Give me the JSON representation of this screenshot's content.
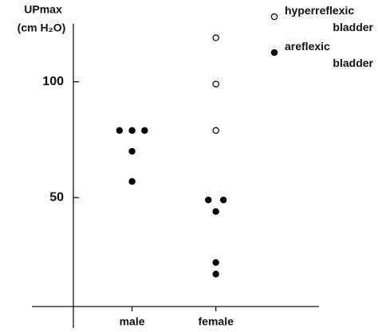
{
  "chart_data": {
    "type": "scatter",
    "y_label": "UPmax",
    "y_unit": "(cm H₂O)",
    "xlim": [
      0.3,
      3.23
    ],
    "xticks": [
      {
        "value": 1,
        "label": "male"
      },
      {
        "value": 2,
        "label": "female"
      }
    ],
    "ylim": [
      3,
      125
    ],
    "yticks": [
      50,
      100
    ],
    "series": [
      {
        "name": "hyperreflexic bladder",
        "color": "#000000",
        "marker": "open",
        "x": [
          2,
          2,
          2
        ],
        "values": [
          119,
          99,
          79
        ]
      },
      {
        "name": "areflexic bladder",
        "color": "#000000",
        "marker": "filled",
        "x": [
          0.85,
          1,
          1.15,
          1,
          1,
          1.91,
          2.09,
          2,
          2,
          2
        ],
        "values": [
          79,
          79,
          79,
          70,
          57,
          49,
          49,
          44,
          22,
          17
        ]
      }
    ]
  }
}
